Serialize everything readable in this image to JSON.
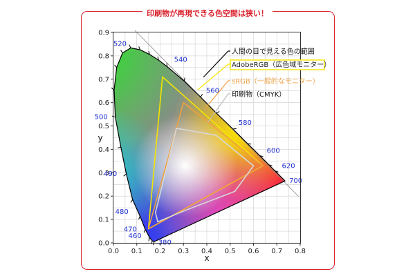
{
  "banner_title": "印刷物が再現できる色空間は狭い！",
  "chart_data": {
    "type": "scatter",
    "title": "印刷物が再現できる色空間は狭い！",
    "xlabel": "x",
    "ylabel": "y",
    "xlim": [
      0.0,
      0.8
    ],
    "ylim": [
      0.0,
      0.9
    ],
    "x_ticks": [
      "0.0",
      "0.1",
      "0.2",
      "0.3",
      "0.4",
      "0.5",
      "0.6",
      "0.7",
      "0.8"
    ],
    "y_ticks": [
      "0.0",
      "0.1",
      "0.2",
      "0.3",
      "0.4",
      "0.5",
      "0.6",
      "0.7",
      "0.8",
      "0.9"
    ],
    "grid": true,
    "legend_position": "top-right",
    "series": [
      {
        "name": "人間の目で見える色の範囲",
        "color": "#000000",
        "points": [
          [
            0.174,
            0.005
          ],
          [
            0.166,
            0.009
          ],
          [
            0.155,
            0.023
          ],
          [
            0.136,
            0.058
          ],
          [
            0.114,
            0.114
          ],
          [
            0.082,
            0.185
          ],
          [
            0.055,
            0.295
          ],
          [
            0.032,
            0.409
          ],
          [
            0.008,
            0.538
          ],
          [
            0.003,
            0.654
          ],
          [
            0.014,
            0.75
          ],
          [
            0.039,
            0.812
          ],
          [
            0.074,
            0.834
          ],
          [
            0.114,
            0.826
          ],
          [
            0.155,
            0.806
          ],
          [
            0.193,
            0.782
          ],
          [
            0.23,
            0.754
          ],
          [
            0.303,
            0.692
          ],
          [
            0.373,
            0.624
          ],
          [
            0.441,
            0.555
          ],
          [
            0.512,
            0.487
          ],
          [
            0.575,
            0.424
          ],
          [
            0.627,
            0.373
          ],
          [
            0.666,
            0.334
          ],
          [
            0.692,
            0.308
          ],
          [
            0.735,
            0.265
          ]
        ]
      },
      {
        "name": "AdobeRGB（広色域モニター）",
        "color": "#f5e400",
        "points": [
          [
            0.64,
            0.33
          ],
          [
            0.21,
            0.71
          ],
          [
            0.15,
            0.06
          ]
        ]
      },
      {
        "name": "sRGB（一般的なモニター）",
        "color": "#f0a040",
        "points": [
          [
            0.64,
            0.33
          ],
          [
            0.3,
            0.6
          ],
          [
            0.15,
            0.06
          ]
        ]
      },
      {
        "name": "印刷物（CMYK）",
        "color": "#d8d8d8",
        "points": [
          [
            0.6,
            0.33
          ],
          [
            0.44,
            0.46
          ],
          [
            0.27,
            0.49
          ],
          [
            0.18,
            0.13
          ],
          [
            0.19,
            0.09
          ],
          [
            0.31,
            0.14
          ],
          [
            0.52,
            0.22
          ]
        ]
      }
    ],
    "wavelength_labels": [
      {
        "text": "380",
        "x": 0.174,
        "y": 0.005
      },
      {
        "text": "460",
        "x": 0.144,
        "y": 0.03
      },
      {
        "text": "470",
        "x": 0.124,
        "y": 0.058
      },
      {
        "text": "480",
        "x": 0.091,
        "y": 0.133
      },
      {
        "text": "490",
        "x": 0.045,
        "y": 0.295
      },
      {
        "text": "500",
        "x": 0.008,
        "y": 0.538
      },
      {
        "text": "520",
        "x": 0.074,
        "y": 0.834
      },
      {
        "text": "540",
        "x": 0.23,
        "y": 0.754
      },
      {
        "text": "560",
        "x": 0.373,
        "y": 0.624
      },
      {
        "text": "580",
        "x": 0.512,
        "y": 0.487
      },
      {
        "text": "600",
        "x": 0.627,
        "y": 0.373
      },
      {
        "text": "620",
        "x": 0.692,
        "y": 0.308
      },
      {
        "text": "700",
        "x": 0.735,
        "y": 0.265
      }
    ]
  }
}
